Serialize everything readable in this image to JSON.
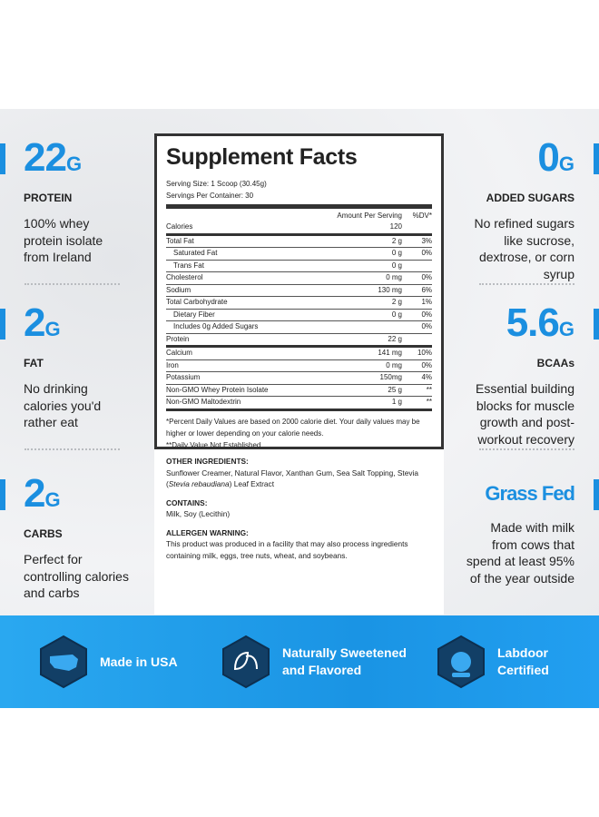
{
  "left_stats": [
    {
      "value": "22",
      "unit": "G",
      "label": "PROTEIN",
      "desc": [
        "100% whey",
        "protein isolate",
        "from Ireland"
      ]
    },
    {
      "value": "2",
      "unit": "G",
      "label": "FAT",
      "desc": [
        "No drinking",
        "calories you'd",
        "rather eat"
      ]
    },
    {
      "value": "2",
      "unit": "G",
      "label": "CARBS",
      "desc": [
        "Perfect for",
        "controlling calories",
        "and carbs"
      ]
    }
  ],
  "right_stats": [
    {
      "value": "0",
      "unit": "G",
      "label": "ADDED SUGARS",
      "desc": [
        "No refined sugars",
        "like sucrose,",
        "dextrose, or corn",
        "syrup"
      ]
    },
    {
      "value": "5.6",
      "unit": "G",
      "label": "BCAAs",
      "desc": [
        "Essential building",
        "blocks for muscle",
        "growth and post-",
        "workout recovery"
      ]
    },
    {
      "value": "Grass Fed",
      "desc": [
        "Made with milk",
        "from cows that",
        "spend at least 95%",
        "of the year outside"
      ]
    }
  ],
  "facts": {
    "title": "Supplement Facts",
    "serving_size": "Serving Size: 1 Scoop (30.45g)",
    "servings": "Servings Per Container: 30",
    "header_amount": "Amount Per Serving",
    "header_dv": "%DV*",
    "rows": [
      {
        "label": "Calories",
        "amount": "120"
      },
      {
        "label": "Total Fat",
        "amount": "2 g",
        "dv": "3%"
      },
      {
        "label": "Saturated Fat",
        "amount": "0 g",
        "dv": "0%"
      },
      {
        "label": "Trans Fat",
        "amount": "0 g"
      },
      {
        "label": "Cholesterol",
        "amount": "0 mg",
        "dv": "0%"
      },
      {
        "label": "Sodium",
        "amount": "130 mg",
        "dv": "6%"
      },
      {
        "label": "Total Carbohydrate",
        "amount": "2 g",
        "dv": "1%"
      },
      {
        "label": "Dietary Fiber",
        "amount": "0 g",
        "dv": "0%"
      },
      {
        "label": "Includes 0g Added Sugars",
        "dv": "0%"
      },
      {
        "label": "Protein",
        "amount": "22 g"
      },
      {
        "label": "Calcium",
        "amount": "141 mg",
        "dv": "10%"
      },
      {
        "label": "Iron",
        "amount": "0 mg",
        "dv": "0%"
      },
      {
        "label": "Potassium",
        "amount": "150mg",
        "dv": "4%"
      },
      {
        "label": "Non-GMO Whey Protein Isolate",
        "amount": "25 g",
        "dv": "**"
      },
      {
        "label": "Non-GMO Maltodextrin",
        "amount": "1 g",
        "dv": "**"
      }
    ],
    "footnote_1": "*Percent Daily Values are based on 2000 calorie diet. Your daily values may be higher or lower depending on your calorie needs.",
    "footnote_2": "**Daily Value Not Established"
  },
  "ingredients": {
    "other_heading": "OTHER INGREDIENTS:",
    "other_text_1": "Sunflower Creamer, Natural Flavor, Xanthan Gum, Sea Salt Topping, Stevia (",
    "other_text_italic": "Stevia rebaudiana",
    "other_text_2": ") Leaf Extract",
    "contains_heading": "CONTAINS:",
    "contains_text": "Milk, Soy (Lecithin)",
    "allergen_heading": "ALLERGEN WARNING:",
    "allergen_text": "This product was produced in a facility that may also process ingredients containing milk, eggs, tree nuts, wheat, and soybeans."
  },
  "banner": [
    "Made in USA",
    "Naturally Sweetened and Flavored",
    "Labdoor Certified"
  ]
}
